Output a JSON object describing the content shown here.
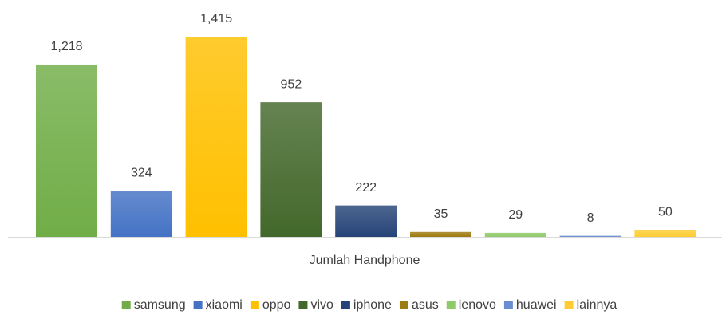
{
  "chart_data": {
    "type": "bar",
    "categories": [
      "Jumlah Handphone"
    ],
    "series": [
      {
        "name": "samsung",
        "color": "#70ad47",
        "values": [
          1218
        ],
        "value_labels": [
          "1,218"
        ]
      },
      {
        "name": "xiaomi",
        "color": "#4472c4",
        "values": [
          324
        ]
      },
      {
        "name": "oppo",
        "color": "#ffc000",
        "values": [
          1415
        ],
        "value_labels": [
          "1,415"
        ]
      },
      {
        "name": "vivo",
        "color": "#43682b",
        "values": [
          952
        ]
      },
      {
        "name": "iphone",
        "color": "#264478",
        "values": [
          222
        ]
      },
      {
        "name": "asus",
        "color": "#9e7b10",
        "values": [
          35
        ]
      },
      {
        "name": "lenovo",
        "color": "#8fca6a",
        "values": [
          29
        ]
      },
      {
        "name": "huawei",
        "color": "#698ed0",
        "values": [
          8
        ]
      },
      {
        "name": "lainnya",
        "color": "#ffcd33",
        "values": [
          50
        ]
      }
    ],
    "legend": "bottom"
  }
}
